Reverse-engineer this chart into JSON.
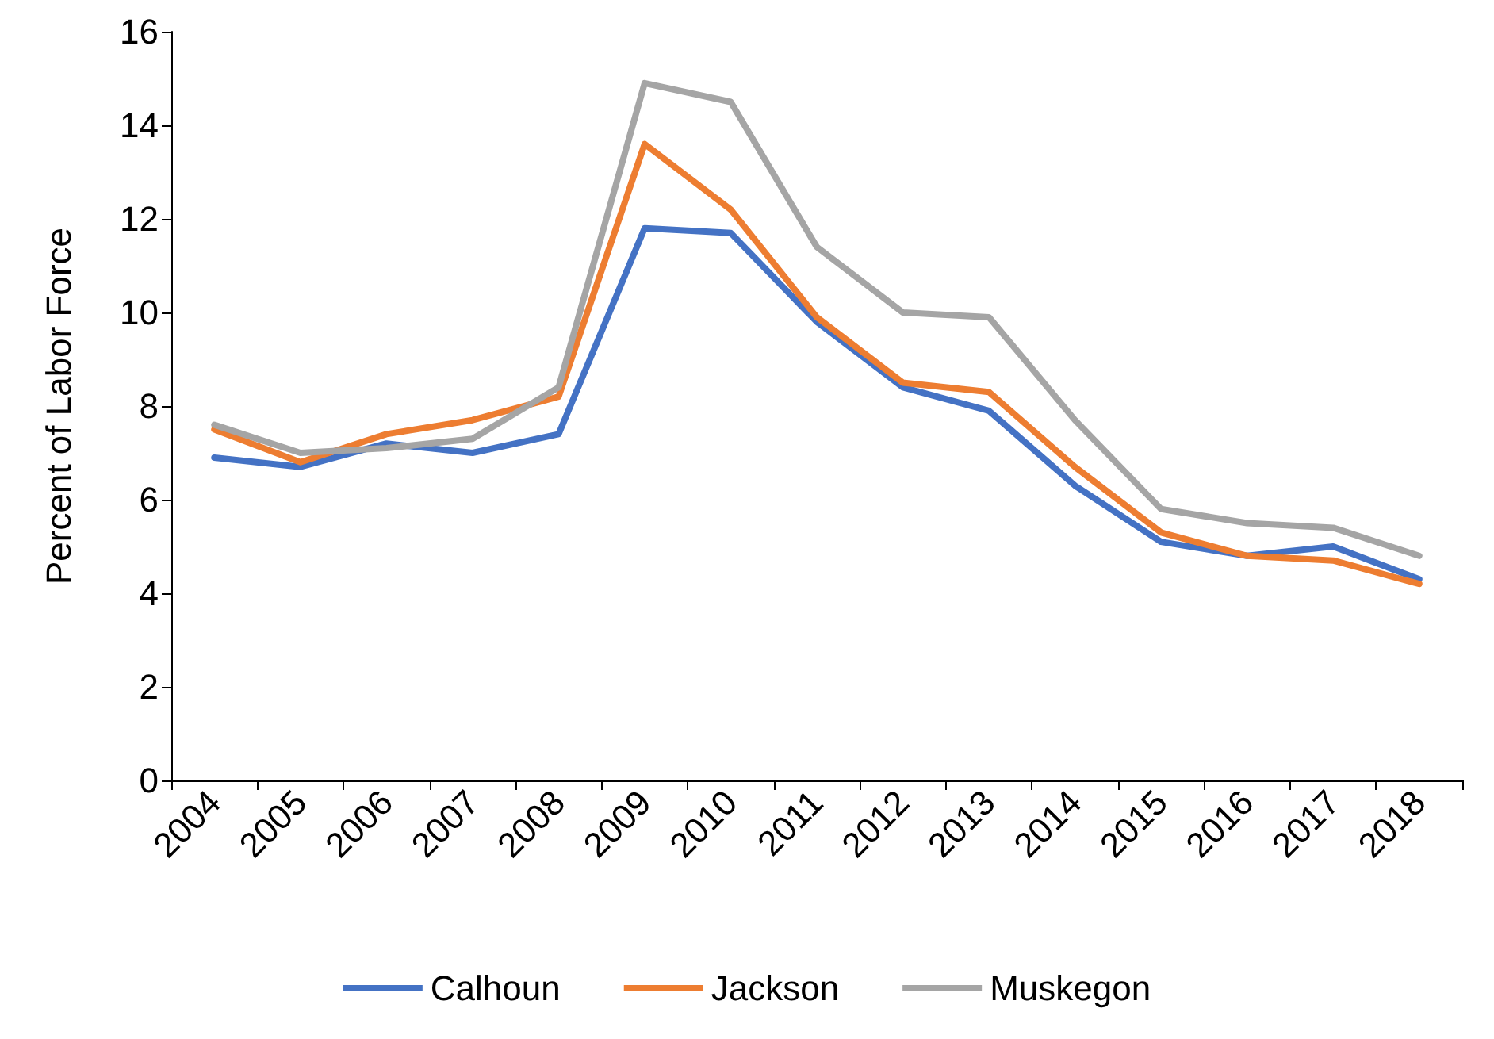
{
  "chart_data": {
    "type": "line",
    "ylabel": "Percent of Labor Force",
    "categories": [
      "2004",
      "2005",
      "2006",
      "2007",
      "2008",
      "2009",
      "2010",
      "2011",
      "2012",
      "2013",
      "2014",
      "2015",
      "2016",
      "2017",
      "2018"
    ],
    "series": [
      {
        "name": "Calhoun",
        "color": "#4472c4",
        "values": [
          6.9,
          6.7,
          7.2,
          7.0,
          7.4,
          11.8,
          11.7,
          9.8,
          8.4,
          7.9,
          6.3,
          5.1,
          4.8,
          5.0,
          4.3
        ]
      },
      {
        "name": "Jackson",
        "color": "#ed7d31",
        "values": [
          7.5,
          6.8,
          7.4,
          7.7,
          8.2,
          13.6,
          12.2,
          9.9,
          8.5,
          8.3,
          6.7,
          5.3,
          4.8,
          4.7,
          4.2
        ]
      },
      {
        "name": "Muskegon",
        "color": "#a5a5a5",
        "values": [
          7.6,
          7.0,
          7.1,
          7.3,
          8.4,
          14.9,
          14.5,
          11.4,
          10.0,
          9.9,
          7.7,
          5.8,
          5.5,
          5.4,
          4.8
        ]
      }
    ],
    "ylim": [
      0,
      16
    ],
    "yticks": [
      0,
      2,
      4,
      6,
      8,
      10,
      12,
      14,
      16
    ],
    "grid": false,
    "legend": "bottom",
    "marker": "none",
    "line_style": "solid"
  }
}
